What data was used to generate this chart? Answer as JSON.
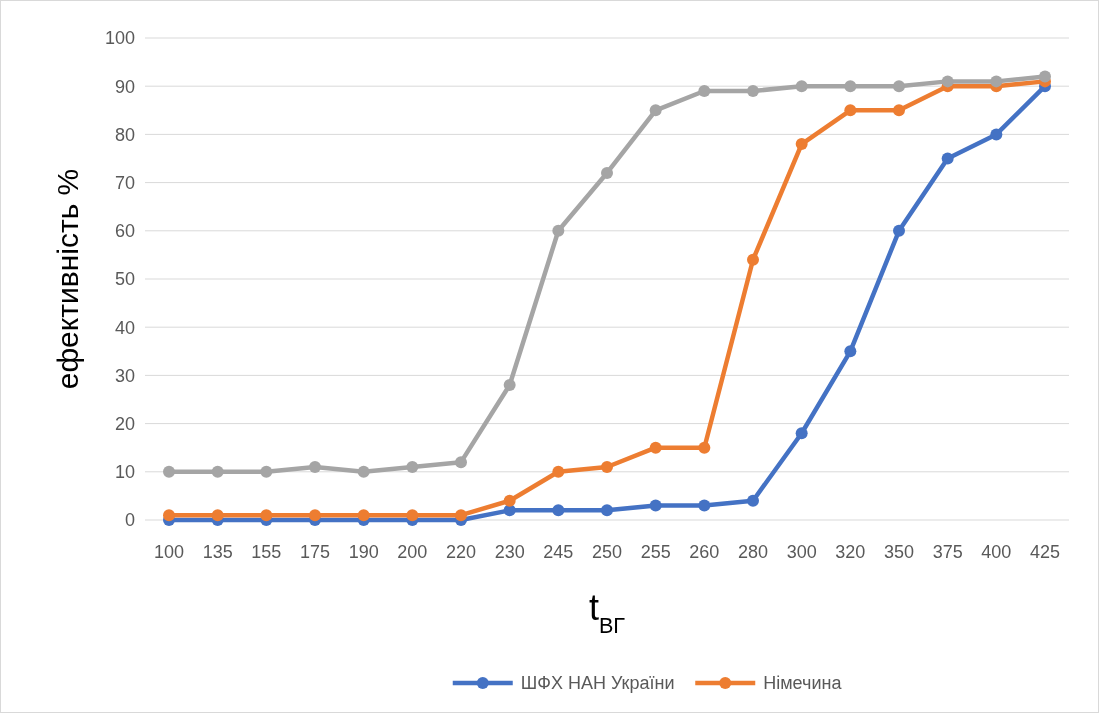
{
  "chart_data": {
    "type": "line",
    "xlabel": "t$_{ВГ}$",
    "ylabel": "ефективність %",
    "categories": [
      "100",
      "135",
      "155",
      "175",
      "190",
      "200",
      "220",
      "230",
      "245",
      "250",
      "255",
      "260",
      "280",
      "300",
      "320",
      "350",
      "375",
      "400",
      "425"
    ],
    "series": [
      {
        "name": "ШФХ НАН України",
        "color": "#4472c4",
        "values": [
          0,
          0,
          0,
          0,
          0,
          0,
          0,
          2,
          2,
          2,
          3,
          3,
          4,
          18,
          35,
          60,
          75,
          80,
          90
        ]
      },
      {
        "name": "Німечина",
        "color": "#ed7d31",
        "values": [
          1,
          1,
          1,
          1,
          1,
          1,
          1,
          4,
          10,
          11,
          15,
          15,
          54,
          78,
          85,
          85,
          90,
          90,
          91
        ]
      },
      {
        "color": "#a5a5a5",
        "values": [
          10,
          10,
          10,
          11,
          10,
          11,
          12,
          28,
          60,
          72,
          85,
          89,
          89,
          90,
          90,
          90,
          91,
          91,
          92
        ]
      }
    ],
    "ylim": [
      0,
      100
    ],
    "yticks": [
      0,
      10,
      20,
      30,
      40,
      50,
      60,
      70,
      80,
      90,
      100
    ],
    "grid": "y",
    "legend": "bottom",
    "marker": "circle",
    "line_style": "solid"
  }
}
